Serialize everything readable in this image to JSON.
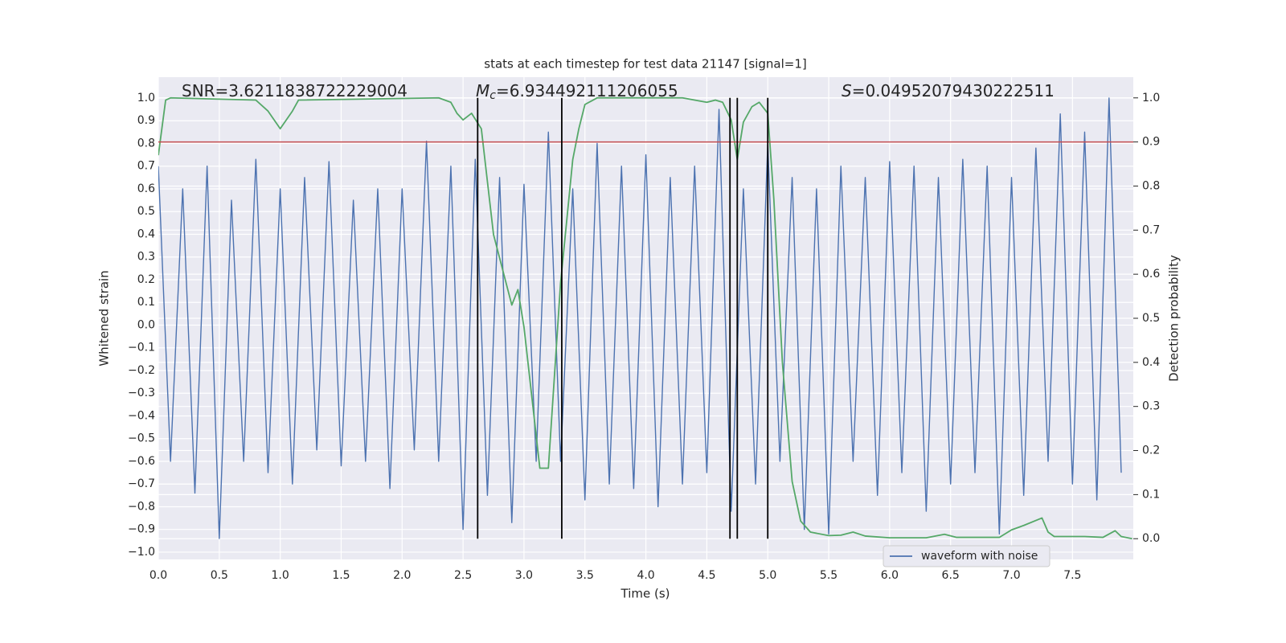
{
  "chart_data": {
    "type": "line",
    "title": "stats at each timestep for test data 21147 [signal=1]",
    "xlabel": "Time (s)",
    "ylabel": "Whitened strain",
    "y2label": "Detection probability",
    "annotations": [
      {
        "text": "SNR=3.6211838722229004"
      },
      {
        "symbol": "M",
        "sub": "c",
        "text": "=6.934492111206055"
      },
      {
        "symbol": "S",
        "text": "=0.04952079430222511"
      }
    ],
    "xlim": [
      0,
      7.999
    ],
    "ylim": [
      -1.032,
      1.092
    ],
    "y2lim": [
      -0.047,
      1.047
    ],
    "xticks": [
      {
        "value": 0,
        "label": "0.0"
      },
      {
        "value": 0.5,
        "label": "0.5"
      },
      {
        "value": 1,
        "label": "1.0"
      },
      {
        "value": 1.5,
        "label": "1.5"
      },
      {
        "value": 2,
        "label": "2.0"
      },
      {
        "value": 2.5,
        "label": "2.5"
      },
      {
        "value": 3,
        "label": "3.0"
      },
      {
        "value": 3.5,
        "label": "3.5"
      },
      {
        "value": 4,
        "label": "4.0"
      },
      {
        "value": 4.5,
        "label": "4.5"
      },
      {
        "value": 5,
        "label": "5.0"
      },
      {
        "value": 5.5,
        "label": "5.5"
      },
      {
        "value": 6,
        "label": "6.0"
      },
      {
        "value": 6.5,
        "label": "6.5"
      },
      {
        "value": 7,
        "label": "7.0"
      },
      {
        "value": 7.5,
        "label": "7.5"
      }
    ],
    "yticks": [
      {
        "value": 1,
        "label": "1.0"
      },
      {
        "value": 0.9,
        "label": "0.9"
      },
      {
        "value": 0.8,
        "label": "0.8"
      },
      {
        "value": 0.7,
        "label": "0.7"
      },
      {
        "value": 0.6,
        "label": "0.6"
      },
      {
        "value": 0.5,
        "label": "0.5"
      },
      {
        "value": 0.4,
        "label": "0.4"
      },
      {
        "value": 0.3,
        "label": "0.3"
      },
      {
        "value": 0.2,
        "label": "0.2"
      },
      {
        "value": 0.1,
        "label": "0.1"
      },
      {
        "value": 0,
        "label": "0.0"
      },
      {
        "value": -0.1,
        "label": "−0.1"
      },
      {
        "value": -0.2,
        "label": "−0.2"
      },
      {
        "value": -0.3,
        "label": "−0.3"
      },
      {
        "value": -0.4,
        "label": "−0.4"
      },
      {
        "value": -0.5,
        "label": "−0.5"
      },
      {
        "value": -0.6,
        "label": "−0.6"
      },
      {
        "value": -0.7,
        "label": "−0.7"
      },
      {
        "value": -0.8,
        "label": "−0.8"
      },
      {
        "value": -0.9,
        "label": "−0.9"
      },
      {
        "value": -1,
        "label": "−1.0"
      }
    ],
    "y2ticks": [
      {
        "value": 1,
        "label": "1.0"
      },
      {
        "value": 0.9,
        "label": "0.9"
      },
      {
        "value": 0.8,
        "label": "0.8"
      },
      {
        "value": 0.7,
        "label": "0.7"
      },
      {
        "value": 0.6,
        "label": "0.6"
      },
      {
        "value": 0.5,
        "label": "0.5"
      },
      {
        "value": 0.4,
        "label": "0.4"
      },
      {
        "value": 0.3,
        "label": "0.3"
      },
      {
        "value": 0.2,
        "label": "0.2"
      },
      {
        "value": 0.1,
        "label": "0.1"
      },
      {
        "value": 0,
        "label": "0.0"
      }
    ],
    "grid": true,
    "legend": "lower right",
    "series": [
      {
        "name": "waveform with noise",
        "color": "#4c72b0",
        "x": [
          0.0,
          0.1,
          0.2,
          0.3,
          0.4,
          0.5,
          0.6,
          0.7,
          0.8,
          0.9,
          1.0,
          1.1,
          1.2,
          1.3,
          1.4,
          1.5,
          1.6,
          1.7,
          1.8,
          1.9,
          2.0,
          2.1,
          2.2,
          2.3,
          2.4,
          2.5,
          2.6,
          2.7,
          2.8,
          2.9,
          3.0,
          3.1,
          3.2,
          3.3,
          3.4,
          3.5,
          3.6,
          3.7,
          3.8,
          3.9,
          4.0,
          4.1,
          4.2,
          4.3,
          4.4,
          4.5,
          4.6,
          4.7,
          4.8,
          4.9,
          5.0,
          5.1,
          5.2,
          5.3,
          5.4,
          5.5,
          5.6,
          5.7,
          5.8,
          5.9,
          6.0,
          6.1,
          6.2,
          6.3,
          6.4,
          6.5,
          6.6,
          6.7,
          6.8,
          6.9,
          7.0,
          7.1,
          7.2,
          7.3,
          7.4,
          7.5,
          7.6,
          7.7,
          7.8,
          7.9
        ],
        "values": [
          0.7,
          -0.6,
          0.6,
          -0.74,
          0.7,
          -0.94,
          0.55,
          -0.6,
          0.73,
          -0.65,
          0.6,
          -0.7,
          0.65,
          -0.55,
          0.72,
          -0.62,
          0.55,
          -0.6,
          0.6,
          -0.72,
          0.6,
          -0.55,
          0.81,
          -0.6,
          0.7,
          -0.9,
          0.73,
          -0.75,
          0.65,
          -0.87,
          0.62,
          -0.6,
          0.85,
          -0.6,
          0.6,
          -0.77,
          0.8,
          -0.7,
          0.7,
          -0.72,
          0.75,
          -0.8,
          0.65,
          -0.7,
          0.7,
          -0.65,
          0.95,
          -0.82,
          0.6,
          -0.7,
          0.8,
          -0.6,
          0.65,
          -0.9,
          0.6,
          -0.92,
          0.7,
          -0.6,
          0.65,
          -0.75,
          0.72,
          -0.65,
          0.7,
          -0.82,
          0.65,
          -0.7,
          0.73,
          -0.65,
          0.7,
          -0.92,
          0.65,
          -0.75,
          0.78,
          -0.6,
          0.93,
          -0.7,
          0.85,
          -0.77,
          1.0,
          -0.65
        ]
      },
      {
        "color": "#55a868",
        "axis": "y2",
        "x": [
          0.0,
          0.06,
          0.1,
          0.8,
          0.9,
          1.0,
          1.1,
          1.15,
          2.3,
          2.4,
          2.45,
          2.5,
          2.57,
          2.65,
          2.75,
          2.9,
          2.95,
          3.0,
          3.13,
          3.2,
          3.3,
          3.4,
          3.45,
          3.5,
          3.6,
          4.3,
          4.5,
          4.57,
          4.63,
          4.7,
          4.75,
          4.8,
          4.87,
          4.93,
          5.0,
          5.05,
          5.12,
          5.2,
          5.27,
          5.35,
          5.5,
          5.6,
          5.7,
          5.8,
          6.0,
          6.3,
          6.45,
          6.55,
          6.9,
          7.0,
          7.1,
          7.25,
          7.3,
          7.35,
          7.6,
          7.75,
          7.85,
          7.9,
          7.99
        ],
        "values": [
          0.87,
          0.995,
          1.0,
          0.995,
          0.97,
          0.93,
          0.97,
          0.995,
          1.0,
          0.99,
          0.965,
          0.95,
          0.965,
          0.93,
          0.69,
          0.53,
          0.565,
          0.48,
          0.16,
          0.16,
          0.58,
          0.86,
          0.93,
          0.985,
          1.0,
          1.0,
          0.99,
          0.995,
          0.99,
          0.95,
          0.86,
          0.945,
          0.98,
          0.99,
          0.965,
          0.77,
          0.4,
          0.13,
          0.04,
          0.015,
          0.007,
          0.008,
          0.015,
          0.006,
          0.002,
          0.002,
          0.01,
          0.003,
          0.003,
          0.02,
          0.03,
          0.047,
          0.015,
          0.005,
          0.005,
          0.003,
          0.018,
          0.005,
          0.0
        ]
      }
    ],
    "threshold": {
      "value": 0.9,
      "axis": "y2",
      "color": "#c44e52"
    },
    "vlines": {
      "x": [
        2.62,
        3.31,
        4.69,
        4.75,
        5.0
      ],
      "y2range": [
        0,
        1
      ],
      "color": "#000000"
    }
  }
}
